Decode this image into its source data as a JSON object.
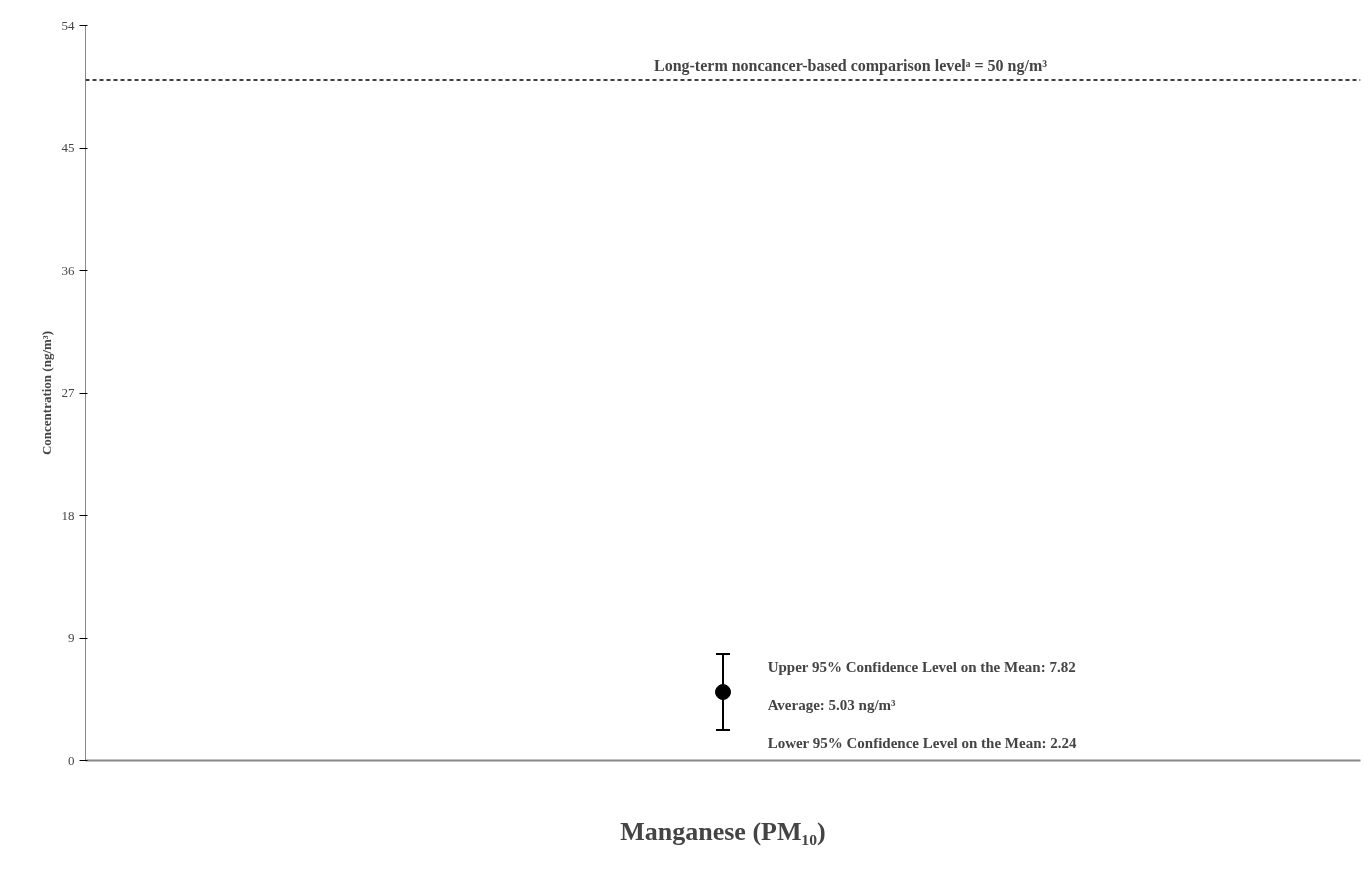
{
  "chart_data": {
    "type": "scatter",
    "xlabel": "Manganese (PM₁₀)",
    "ylabel": "Concentration (ng/m³)",
    "categories": [
      null
    ],
    "series": [
      {
        "color": "#000000",
        "values": [
          5.03
        ],
        "errors": [
          [
            2.24,
            7.82
          ]
        ]
      }
    ],
    "ylim": [
      0,
      54
    ],
    "yticks": [
      0,
      9,
      18,
      27,
      36,
      45,
      54
    ],
    "tick_labels": "y",
    "grid": false,
    "marker": "circle",
    "ref_lines": [
      {
        "axis": "y",
        "value": 50,
        "label": "Long-term noncancer-based comparison levelᵃ = 50 ng/m³",
        "color": "#000000",
        "line_style": "dashed"
      }
    ],
    "annotations": [
      "Upper 95% Confidence Level on the Mean: 7.82",
      "Average: 5.03 ng/m³",
      "Lower 95% Confidence Level on the Mean: 2.24"
    ]
  }
}
